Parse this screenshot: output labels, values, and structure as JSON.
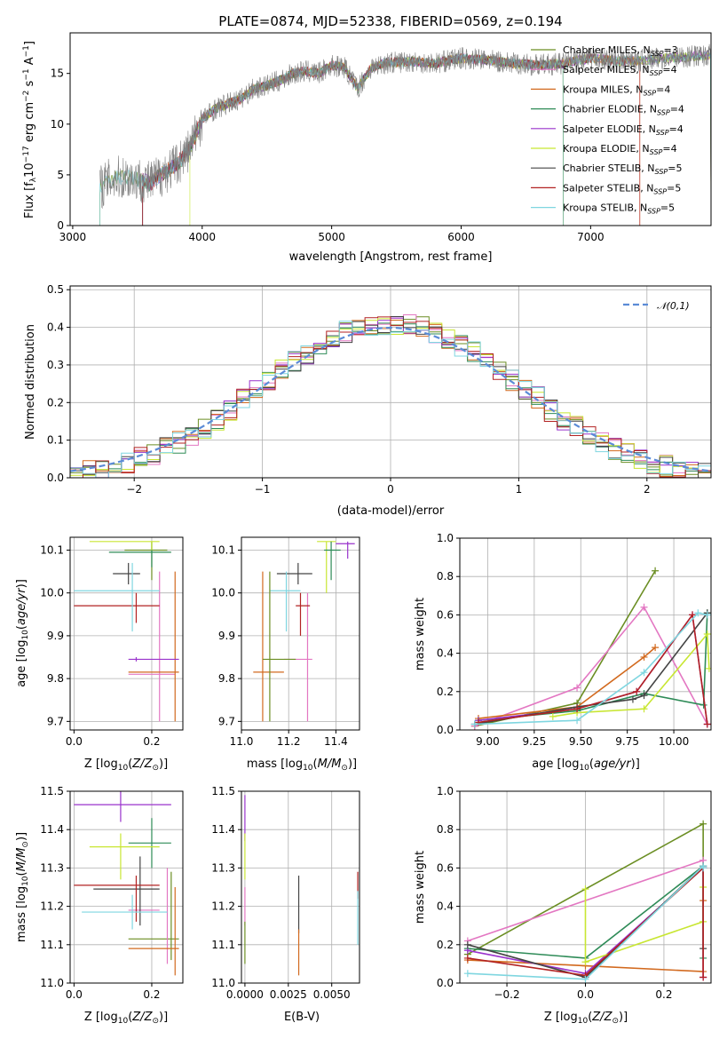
{
  "title": "PLATE=0874, MJD=52338, FIBERID=0569, z=0.194",
  "models": [
    {
      "label": "Chabrier MILES, N",
      "sub": "SSP",
      "n": "=3",
      "color": "#6b8e23"
    },
    {
      "label": "Salpeter MILES, N",
      "sub": "SSP",
      "n": "=4",
      "color": "#e377c2"
    },
    {
      "label": "Kroupa MILES, N",
      "sub": "SSP",
      "n": "=4",
      "color": "#d2691e"
    },
    {
      "label": "Chabrier ELODIE, N",
      "sub": "SSP",
      "n": "=4",
      "color": "#2e8b57"
    },
    {
      "label": "Salpeter ELODIE, N",
      "sub": "SSP",
      "n": "=4",
      "color": "#9932cc"
    },
    {
      "label": "Kroupa ELODIE, N",
      "sub": "SSP",
      "n": "=4",
      "color": "#c8e632"
    },
    {
      "label": "Chabrier STELIB, N",
      "sub": "SSP",
      "n": "=5",
      "color": "#444444"
    },
    {
      "label": "Salpeter STELIB, N",
      "sub": "SSP",
      "n": "=5",
      "color": "#b22222"
    },
    {
      "label": "Kroupa STELIB, N",
      "sub": "SSP",
      "n": "=5",
      "color": "#7fd6e0"
    }
  ],
  "chart_data": [
    {
      "type": "line",
      "xlabel": "wavelength [Angstrom, rest frame]",
      "ylabel": "Flux [fλ10⁻¹⁷ erg cm⁻² s⁻¹ A⁻¹]",
      "xlim": [
        2980,
        7930
      ],
      "ylim": [
        0,
        19
      ],
      "xticks": [
        3000,
        4000,
        5000,
        6000,
        7000
      ],
      "yticks": [
        0,
        5,
        10,
        15
      ],
      "legend": "top-right",
      "observed_spectrum": {
        "x": [
          3210,
          3300,
          3400,
          3500,
          3600,
          3700,
          3800,
          3900,
          4000,
          4100,
          4200,
          4300,
          4400,
          4500,
          4600,
          4700,
          4800,
          4900,
          5000,
          5100,
          5200,
          5300,
          5400,
          5600,
          5800,
          6000,
          6200,
          6400,
          6600,
          6800,
          7000,
          7200,
          7400,
          7600,
          7900
        ],
        "y": [
          3.8,
          4.6,
          4.8,
          4.6,
          4.2,
          5.2,
          6.0,
          7.5,
          10.5,
          11.5,
          12.0,
          12.5,
          13.5,
          13.8,
          14.3,
          15.0,
          15.2,
          15.0,
          15.8,
          15.6,
          13.5,
          15.5,
          16.0,
          16.2,
          16.0,
          16.5,
          16.3,
          16.0,
          15.8,
          16.0,
          16.5,
          16.2,
          16.3,
          16.5,
          16.8
        ]
      }
    },
    {
      "type": "bar",
      "xlabel": "(data-model)/error",
      "ylabel": "Normed distribution",
      "xlim": [
        -2.5,
        2.5
      ],
      "ylim": [
        0,
        0.51
      ],
      "xticks": [
        -2,
        -1,
        0,
        1,
        2
      ],
      "yticks": [
        0.0,
        0.1,
        0.2,
        0.3,
        0.4,
        0.5
      ],
      "reference_curve": "𝒩(0,1)",
      "legend": "top-right",
      "bin_width": 0.1
    },
    {
      "type": "scatter",
      "xlabel": "Z [log10(Z/Z⊙)]",
      "ylabel": "age  [log10(age/yr)]",
      "xlim": [
        -0.01,
        0.28
      ],
      "ylim": [
        9.68,
        10.13
      ],
      "xticks": [
        0.0,
        0.2
      ],
      "yticks": [
        9.7,
        9.8,
        9.9,
        10.0,
        10.1
      ],
      "points": [
        {
          "model": 0,
          "x": 0.2,
          "y": 10.1,
          "xerr": [
            0.13,
            0.24
          ],
          "yerr": [
            10.03,
            10.12
          ]
        },
        {
          "model": 1,
          "x": 0.22,
          "y": 9.81,
          "xerr": [
            0.14,
            0.26
          ],
          "yerr": [
            9.7,
            10.05
          ]
        },
        {
          "model": 2,
          "x": 0.26,
          "y": 9.815,
          "xerr": [
            0.14,
            0.27
          ],
          "yerr": [
            9.7,
            10.05
          ]
        },
        {
          "model": 3,
          "x": 0.2,
          "y": 10.095,
          "xerr": [
            0.09,
            0.25
          ],
          "yerr": [
            10.06,
            10.12
          ]
        },
        {
          "model": 4,
          "x": 0.16,
          "y": 9.845,
          "xerr": [
            0.14,
            0.27
          ],
          "yerr": [
            9.84,
            9.85
          ]
        },
        {
          "model": 5,
          "x": 0.2,
          "y": 10.12,
          "xerr": [
            0.04,
            0.22
          ],
          "yerr": [
            10.1,
            10.12
          ]
        },
        {
          "model": 6,
          "x": 0.14,
          "y": 10.045,
          "xerr": [
            0.1,
            0.17
          ],
          "yerr": [
            10.02,
            10.07
          ]
        },
        {
          "model": 7,
          "x": 0.16,
          "y": 9.97,
          "xerr": [
            0.0,
            0.22
          ],
          "yerr": [
            9.93,
            10.0
          ]
        },
        {
          "model": 8,
          "x": 0.15,
          "y": 10.005,
          "xerr": [
            0.0,
            0.22
          ],
          "yerr": [
            9.91,
            10.07
          ]
        }
      ]
    },
    {
      "type": "scatter",
      "xlabel": "mass [log10(M/M⊙)]",
      "ylabel": "",
      "xlim": [
        11.0,
        11.5
      ],
      "ylim": [
        9.68,
        10.13
      ],
      "xticks": [
        11.0,
        11.2,
        11.4
      ],
      "yticks": [
        9.7,
        9.8,
        9.9,
        10.0,
        10.1
      ],
      "points": [
        {
          "model": 1,
          "x": 11.28,
          "y": 9.845,
          "xerr": [
            11.18,
            11.3
          ],
          "yerr": [
            9.7,
            10.0
          ]
        },
        {
          "model": 2,
          "x": 11.09,
          "y": 9.815,
          "xerr": [
            11.05,
            11.18
          ],
          "yerr": [
            9.7,
            10.05
          ]
        },
        {
          "model": 4,
          "x": 11.45,
          "y": 10.115,
          "xerr": [
            11.4,
            11.48
          ],
          "yerr": [
            10.08,
            10.12
          ]
        },
        {
          "model": 5,
          "x": 11.36,
          "y": 10.12,
          "xerr": [
            11.32,
            11.4
          ],
          "yerr": [
            10.0,
            10.12
          ]
        },
        {
          "model": 3,
          "x": 11.38,
          "y": 10.1,
          "xerr": [
            11.35,
            11.42
          ],
          "yerr": [
            10.03,
            10.12
          ]
        },
        {
          "model": 6,
          "x": 11.24,
          "y": 10.045,
          "xerr": [
            11.15,
            11.3
          ],
          "yerr": [
            10.02,
            10.07
          ]
        },
        {
          "model": 7,
          "x": 11.25,
          "y": 9.97,
          "xerr": [
            11.23,
            11.29
          ],
          "yerr": [
            9.9,
            10.0
          ]
        },
        {
          "model": 8,
          "x": 11.19,
          "y": 10.005,
          "xerr": [
            11.12,
            11.25
          ],
          "yerr": [
            9.91,
            10.05
          ]
        },
        {
          "model": 0,
          "x": 11.12,
          "y": 9.845,
          "xerr": [
            11.09,
            11.23
          ],
          "yerr": [
            9.7,
            10.05
          ]
        }
      ]
    },
    {
      "type": "line",
      "xlabel": "age  [log10(age/yr)]",
      "ylabel": "mass weight",
      "xlim": [
        8.85,
        10.2
      ],
      "ylim": [
        0,
        1.0
      ],
      "xticks": [
        9.0,
        9.25,
        9.5,
        9.75,
        10.0
      ],
      "yticks": [
        0.0,
        0.2,
        0.4,
        0.6,
        0.8,
        1.0
      ],
      "series": [
        {
          "model": 0,
          "x": [
            8.93,
            9.48,
            9.9
          ],
          "y": [
            0.02,
            0.14,
            0.83
          ]
        },
        {
          "model": 1,
          "x": [
            8.93,
            9.48,
            9.84,
            10.18
          ],
          "y": [
            0.02,
            0.22,
            0.64,
            0.03
          ]
        },
        {
          "model": 2,
          "x": [
            8.95,
            9.48,
            9.84,
            9.9
          ],
          "y": [
            0.06,
            0.12,
            0.38,
            0.43
          ]
        },
        {
          "model": 3,
          "x": [
            8.95,
            9.48,
            9.84,
            10.16,
            10.18
          ],
          "y": [
            0.05,
            0.1,
            0.19,
            0.13,
            0.61
          ]
        },
        {
          "model": 4,
          "x": [
            8.95,
            9.48,
            9.8,
            10.1,
            10.18
          ],
          "y": [
            0.05,
            0.11,
            0.2,
            0.6,
            0.03
          ]
        },
        {
          "model": 5,
          "x": [
            9.35,
            9.48,
            9.84,
            10.18,
            10.19
          ],
          "y": [
            0.07,
            0.09,
            0.11,
            0.5,
            0.32
          ]
        },
        {
          "model": 6,
          "x": [
            8.93,
            9.48,
            9.78,
            9.84,
            10.18
          ],
          "y": [
            0.03,
            0.12,
            0.16,
            0.18,
            0.61
          ]
        },
        {
          "model": 7,
          "x": [
            8.95,
            9.48,
            9.8,
            10.1,
            10.18
          ],
          "y": [
            0.04,
            0.11,
            0.2,
            0.6,
            0.03
          ]
        },
        {
          "model": 8,
          "x": [
            8.93,
            9.48,
            9.84,
            10.13,
            10.18
          ],
          "y": [
            0.03,
            0.05,
            0.3,
            0.61,
            0.6
          ]
        }
      ]
    },
    {
      "type": "scatter",
      "xlabel": "Z [log10(Z/Z⊙)]",
      "ylabel": "mass [log10(M/M⊙)]",
      "xlim": [
        -0.01,
        0.28
      ],
      "ylim": [
        11.0,
        11.5
      ],
      "xticks": [
        0.0,
        0.2
      ],
      "yticks": [
        11.0,
        11.1,
        11.2,
        11.3,
        11.4,
        11.5
      ],
      "points": [
        {
          "model": 0,
          "x": 0.25,
          "y": 11.115,
          "xerr": [
            0.14,
            0.27
          ],
          "yerr": [
            11.06,
            11.29
          ]
        },
        {
          "model": 1,
          "x": 0.24,
          "y": 11.19,
          "xerr": [
            0.14,
            0.22
          ],
          "yerr": [
            11.05,
            11.3
          ]
        },
        {
          "model": 2,
          "x": 0.26,
          "y": 11.09,
          "xerr": [
            0.14,
            0.27
          ],
          "yerr": [
            11.02,
            11.25
          ]
        },
        {
          "model": 3,
          "x": 0.2,
          "y": 11.365,
          "xerr": [
            0.14,
            0.25
          ],
          "yerr": [
            11.3,
            11.43
          ]
        },
        {
          "model": 4,
          "x": 0.12,
          "y": 11.465,
          "xerr": [
            0.0,
            0.25
          ],
          "yerr": [
            11.42,
            11.51
          ]
        },
        {
          "model": 5,
          "x": 0.12,
          "y": 11.355,
          "xerr": [
            0.04,
            0.22
          ],
          "yerr": [
            11.27,
            11.39
          ]
        },
        {
          "model": 6,
          "x": 0.17,
          "y": 11.245,
          "xerr": [
            0.05,
            0.22
          ],
          "yerr": [
            11.15,
            11.33
          ]
        },
        {
          "model": 7,
          "x": 0.16,
          "y": 11.255,
          "xerr": [
            0.0,
            0.22
          ],
          "yerr": [
            11.16,
            11.28
          ]
        },
        {
          "model": 8,
          "x": 0.15,
          "y": 11.185,
          "xerr": [
            0.02,
            0.24
          ],
          "yerr": [
            11.14,
            11.23
          ]
        }
      ]
    },
    {
      "type": "scatter",
      "xlabel": "E(B-V)",
      "ylabel": "",
      "xlim": [
        -0.0002,
        0.0066
      ],
      "ylim": [
        11.0,
        11.5
      ],
      "xticks": [
        0.0,
        0.0025,
        0.005
      ],
      "xticklabels": [
        "0.0000",
        "0.0025",
        "0.0050"
      ],
      "yticks": [
        11.0,
        11.1,
        11.2,
        11.3,
        11.4,
        11.5
      ],
      "points": [
        {
          "model": 4,
          "x": 0.0,
          "y": 11.42,
          "yerr": [
            11.37,
            11.49
          ]
        },
        {
          "model": 5,
          "x": 0.0,
          "y": 11.33,
          "yerr": [
            11.27,
            11.39
          ]
        },
        {
          "model": 1,
          "x": 0.0,
          "y": 11.19,
          "yerr": [
            11.15,
            11.25
          ]
        },
        {
          "model": 0,
          "x": 0.0,
          "y": 11.1,
          "yerr": [
            11.05,
            11.16
          ]
        },
        {
          "model": 6,
          "x": 0.0031,
          "y": 11.2,
          "yerr": [
            11.13,
            11.28
          ]
        },
        {
          "model": 2,
          "x": 0.0031,
          "y": 11.08,
          "yerr": [
            11.02,
            11.14
          ]
        },
        {
          "model": 7,
          "x": 0.0065,
          "y": 11.25,
          "yerr": [
            11.22,
            11.29
          ]
        },
        {
          "model": 8,
          "x": 0.0065,
          "y": 11.17,
          "yerr": [
            11.1,
            11.24
          ]
        }
      ]
    },
    {
      "type": "line",
      "xlabel": "Z [log10(Z/Z⊙)]",
      "ylabel": "mass weight",
      "xlim": [
        -0.32,
        0.32
      ],
      "ylim": [
        0,
        1.0
      ],
      "xticks": [
        -0.2,
        0.0,
        0.2
      ],
      "xticklabels": [
        "−0.2",
        "0.0",
        "0.2"
      ],
      "yticks": [
        0.0,
        0.2,
        0.4,
        0.6,
        0.8,
        1.0
      ],
      "series": [
        {
          "model": 0,
          "x": [
            -0.3,
            0.3,
            0.3
          ],
          "y": [
            0.15,
            0.83,
            0.6
          ]
        },
        {
          "model": 1,
          "x": [
            -0.3,
            0.3,
            0.3
          ],
          "y": [
            0.22,
            0.64,
            0.03
          ]
        },
        {
          "model": 2,
          "x": [
            -0.3,
            0.0,
            0.3,
            0.3
          ],
          "y": [
            0.12,
            0.09,
            0.06,
            0.43
          ]
        },
        {
          "model": 3,
          "x": [
            -0.3,
            0.0,
            0.3,
            0.3
          ],
          "y": [
            0.18,
            0.13,
            0.61,
            0.13
          ]
        },
        {
          "model": 4,
          "x": [
            -0.3,
            0.0,
            0.3,
            0.3
          ],
          "y": [
            0.17,
            0.05,
            0.6,
            0.03
          ]
        },
        {
          "model": 5,
          "x": [
            0.0,
            0.0,
            0.3,
            0.3
          ],
          "y": [
            0.49,
            0.11,
            0.32,
            0.5
          ]
        },
        {
          "model": 6,
          "x": [
            -0.3,
            0.0,
            0.3,
            0.3
          ],
          "y": [
            0.2,
            0.03,
            0.61,
            0.18
          ]
        },
        {
          "model": 7,
          "x": [
            -0.3,
            0.0,
            0.3,
            0.3
          ],
          "y": [
            0.13,
            0.04,
            0.6,
            0.03
          ]
        },
        {
          "model": 8,
          "x": [
            -0.3,
            0.0,
            0.3,
            0.3
          ],
          "y": [
            0.05,
            0.02,
            0.61,
            0.6
          ]
        }
      ]
    }
  ]
}
